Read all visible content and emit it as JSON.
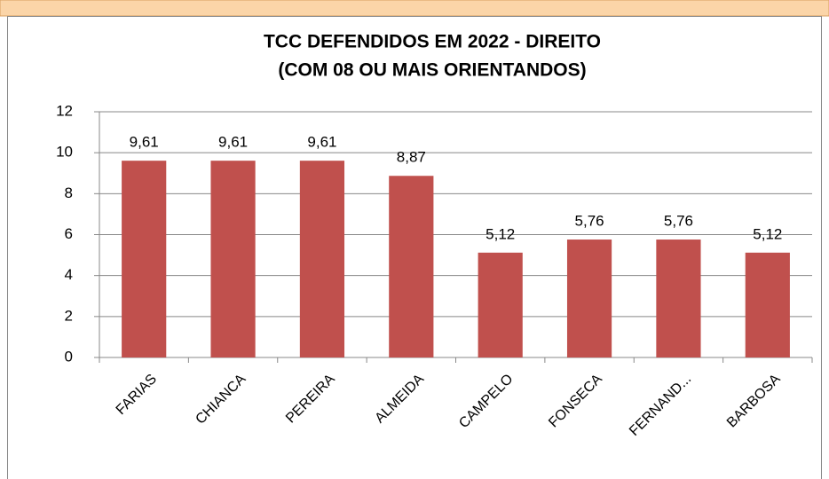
{
  "chart_data": {
    "type": "bar",
    "title": "TCC DEFENDIDOS EM 2022 - DIREITO",
    "subtitle": "(COM 08 OU MAIS ORIENTANDOS)",
    "categories": [
      "FARIAS",
      "CHIANCA",
      "PEREIRA",
      "ALMEIDA",
      "CAMPELO",
      "FONSECA",
      "FERNAND...",
      "BARBOSA"
    ],
    "values": [
      9.61,
      9.61,
      9.61,
      8.87,
      5.12,
      5.76,
      5.76,
      5.12
    ],
    "value_labels": [
      "9,61",
      "9,61",
      "9,61",
      "8,87",
      "5,12",
      "5,76",
      "5,76",
      "5,12"
    ],
    "color": "#c0504d",
    "ylim": [
      0,
      12
    ],
    "yticks": [
      0,
      2,
      4,
      6,
      8,
      10,
      12
    ],
    "grid": true
  }
}
